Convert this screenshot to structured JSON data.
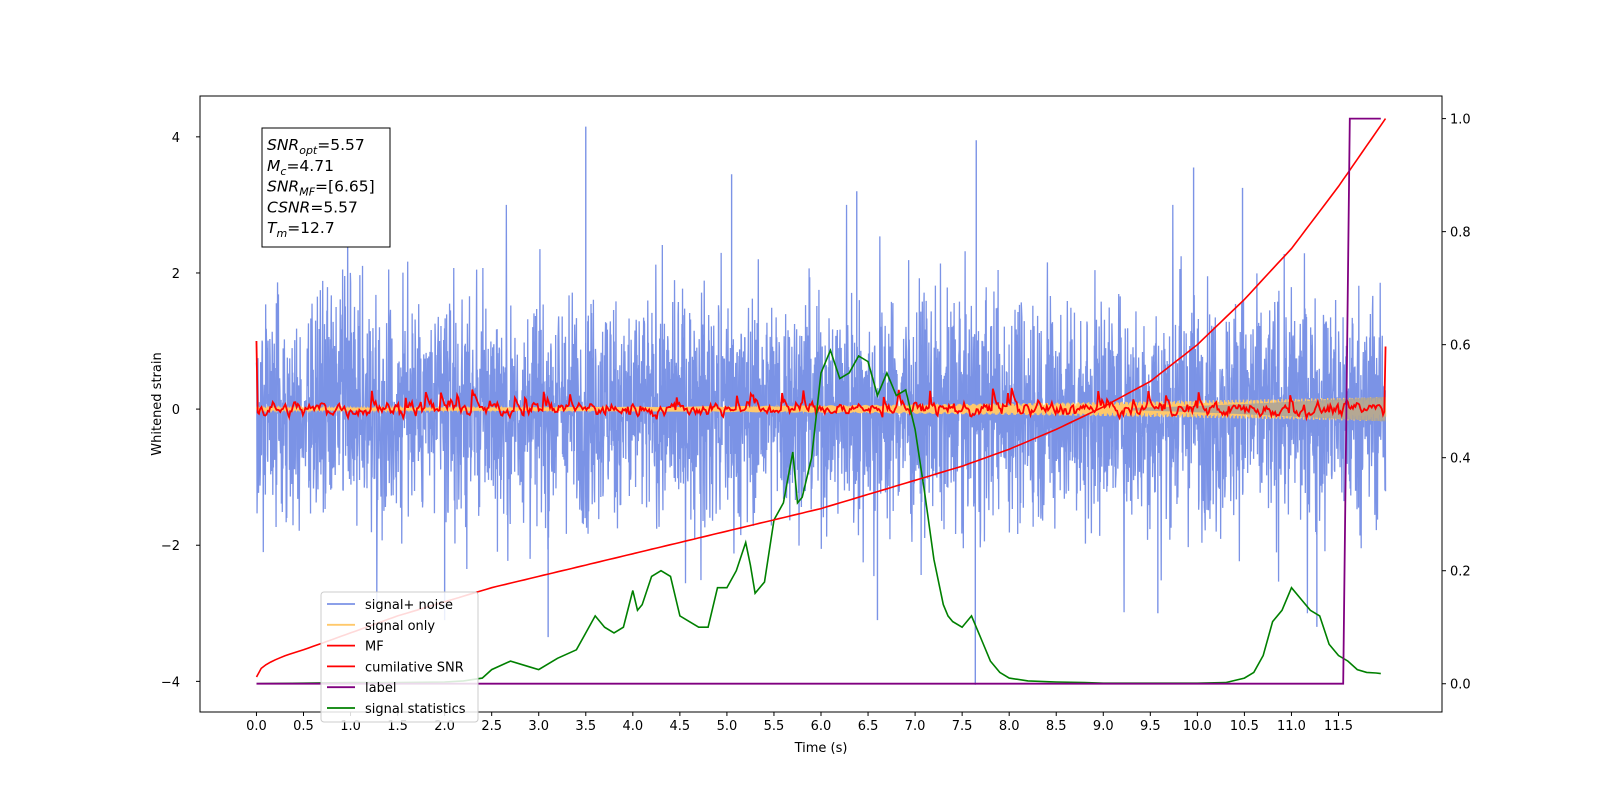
{
  "chart_data": {
    "type": "line",
    "xlabel": "Time (s)",
    "ylabel_left": "Whitened strain",
    "ylabel_right": "",
    "xlim": [
      -0.6,
      12.6
    ],
    "ylim_left": [
      -4.45,
      4.6
    ],
    "ylim_right": [
      -0.05,
      1.04
    ],
    "x_ticks": [
      0.0,
      0.5,
      1.0,
      1.5,
      2.0,
      2.5,
      3.0,
      3.5,
      4.0,
      4.5,
      5.0,
      5.5,
      6.0,
      6.5,
      7.0,
      7.5,
      8.0,
      8.5,
      9.0,
      9.5,
      10.0,
      10.5,
      11.0,
      11.5
    ],
    "x_tick_labels": [
      "0.0",
      "0.5",
      "1.0",
      "1.5",
      "2.0",
      "2.5",
      "3.0",
      "3.5",
      "4.0",
      "4.5",
      "5.0",
      "5.5",
      "6.0",
      "6.5",
      "7.0",
      "7.5",
      "8.0",
      "8.5",
      "9.0",
      "9.5",
      "10.0",
      "10.5",
      "11.0",
      "11.5"
    ],
    "y_ticks_left": [
      4,
      2,
      0,
      -2,
      -4
    ],
    "y_tick_labels_left": [
      "4",
      "2",
      "0",
      "−2",
      "−4"
    ],
    "y_ticks_right": [
      1.0,
      0.8,
      0.6,
      0.4,
      0.2,
      0.0
    ],
    "y_tick_labels_right": [
      "1.0",
      "0.8",
      "0.6",
      "0.4",
      "0.2",
      "0.0"
    ],
    "annotation": {
      "lines": [
        {
          "base": "SNR",
          "sub": "opt",
          "value": "=5.57"
        },
        {
          "base": "M",
          "sub": "c",
          "value": "=4.71"
        },
        {
          "base": "SNR",
          "sub": "MF",
          "value": "=[6.65]"
        },
        {
          "base": "CSNR",
          "sub": "",
          "value": "=5.57"
        },
        {
          "base": "T",
          "sub": "m",
          "value": "=12.7"
        }
      ]
    },
    "legend": {
      "placement": "lower-left",
      "entries": [
        {
          "label": "signal+ noise",
          "color": "#7b93e6"
        },
        {
          "label": "signal only",
          "color": "#ffc96b"
        },
        {
          "label": "MF",
          "color": "#ff0000"
        },
        {
          "label": "cumilative SNR",
          "color": "#ff0000"
        },
        {
          "label": "label",
          "color": "#800080"
        },
        {
          "label": "signal statistics",
          "color": "#008000"
        }
      ]
    },
    "series": [
      {
        "name": "signal+ noise",
        "axis": "left",
        "color": "#7b93e6",
        "style": "noise",
        "x_range": [
          0.0,
          12.0
        ],
        "typical_range": [
          -2.0,
          2.0
        ],
        "spikes": [
          {
            "x": 3.5,
            "y": 4.15
          },
          {
            "x": 7.64,
            "y": -4.05
          },
          {
            "x": 7.65,
            "y": 3.95
          },
          {
            "x": 5.05,
            "y": 3.45
          },
          {
            "x": 9.96,
            "y": 3.55
          },
          {
            "x": 10.48,
            "y": 3.25
          },
          {
            "x": 6.38,
            "y": 3.2
          },
          {
            "x": 3.1,
            "y": -3.35
          },
          {
            "x": 11.27,
            "y": -3.2
          },
          {
            "x": 2.0,
            "y": -3.1
          },
          {
            "x": 9.58,
            "y": -3.0
          },
          {
            "x": 6.6,
            "y": -3.1
          }
        ]
      },
      {
        "name": "signal only",
        "axis": "left",
        "color": "#ffc96b",
        "style": "chirp",
        "x_range": [
          0.0,
          12.0
        ],
        "amp_start": 0.02,
        "amp_end": 0.18
      },
      {
        "name": "MF",
        "axis": "left",
        "color": "#ff0000",
        "style": "mf",
        "x_range": [
          0.0,
          12.0
        ],
        "start_value": 1.0,
        "end_value": 0.92,
        "typical_range": [
          -0.2,
          0.3
        ]
      },
      {
        "name": "cumilative SNR",
        "axis": "right",
        "x": [
          0.0,
          0.5,
          1.0,
          1.5,
          2.0,
          2.5,
          3.0,
          3.5,
          4.0,
          4.5,
          5.0,
          5.5,
          6.0,
          6.5,
          7.0,
          7.5,
          8.0,
          8.5,
          9.0,
          9.5,
          10.0,
          10.5,
          11.0,
          11.5,
          12.0
        ],
        "values": [
          0.012,
          0.06,
          0.09,
          0.12,
          0.145,
          0.17,
          0.19,
          0.21,
          0.23,
          0.25,
          0.27,
          0.29,
          0.31,
          0.335,
          0.36,
          0.385,
          0.415,
          0.45,
          0.49,
          0.535,
          0.6,
          0.68,
          0.77,
          0.88,
          1.0
        ]
      },
      {
        "name": "label",
        "axis": "right",
        "x": [
          0.0,
          11.55,
          11.62,
          11.95
        ],
        "values": [
          0.0,
          0.0,
          1.0,
          1.0
        ]
      },
      {
        "name": "signal statistics",
        "axis": "right",
        "x": [
          0.0,
          0.5,
          1.0,
          1.5,
          2.0,
          2.2,
          2.4,
          2.5,
          2.7,
          2.9,
          3.0,
          3.2,
          3.4,
          3.5,
          3.6,
          3.7,
          3.8,
          3.9,
          4.0,
          4.05,
          4.1,
          4.2,
          4.3,
          4.4,
          4.5,
          4.6,
          4.7,
          4.8,
          4.9,
          5.0,
          5.1,
          5.2,
          5.25,
          5.3,
          5.4,
          5.5,
          5.6,
          5.7,
          5.75,
          5.8,
          5.9,
          6.0,
          6.1,
          6.2,
          6.3,
          6.4,
          6.5,
          6.6,
          6.7,
          6.8,
          6.9,
          7.0,
          7.1,
          7.2,
          7.3,
          7.35,
          7.4,
          7.5,
          7.6,
          7.7,
          7.8,
          7.9,
          8.0,
          8.2,
          8.5,
          8.8,
          9.0,
          9.5,
          10.0,
          10.3,
          10.5,
          10.6,
          10.7,
          10.8,
          10.9,
          11.0,
          11.1,
          11.2,
          11.3,
          11.4,
          11.5,
          11.6,
          11.7,
          11.8,
          11.9,
          11.95
        ],
        "values": [
          0.0,
          0.001,
          0.002,
          0.002,
          0.003,
          0.005,
          0.01,
          0.025,
          0.04,
          0.03,
          0.025,
          0.045,
          0.06,
          0.09,
          0.12,
          0.1,
          0.09,
          0.1,
          0.165,
          0.13,
          0.14,
          0.19,
          0.2,
          0.19,
          0.12,
          0.11,
          0.1,
          0.1,
          0.17,
          0.17,
          0.2,
          0.25,
          0.21,
          0.16,
          0.18,
          0.29,
          0.32,
          0.41,
          0.32,
          0.33,
          0.4,
          0.55,
          0.59,
          0.54,
          0.55,
          0.58,
          0.57,
          0.51,
          0.55,
          0.51,
          0.52,
          0.45,
          0.34,
          0.22,
          0.14,
          0.12,
          0.11,
          0.1,
          0.12,
          0.08,
          0.04,
          0.02,
          0.01,
          0.005,
          0.003,
          0.002,
          0.001,
          0.001,
          0.001,
          0.002,
          0.01,
          0.02,
          0.05,
          0.11,
          0.13,
          0.17,
          0.15,
          0.13,
          0.12,
          0.07,
          0.05,
          0.04,
          0.025,
          0.02,
          0.019,
          0.018
        ]
      }
    ]
  }
}
